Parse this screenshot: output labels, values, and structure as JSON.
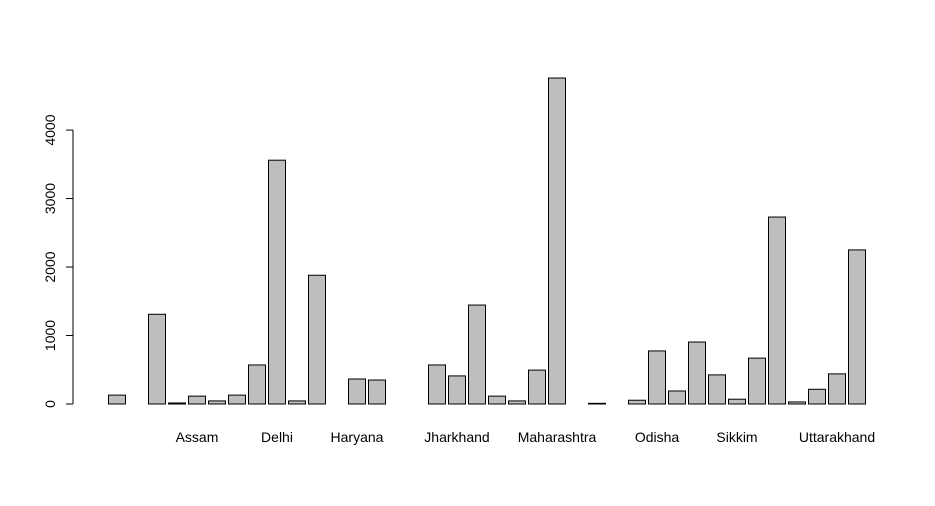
{
  "chart_data": {
    "type": "bar",
    "categories": [
      null,
      null,
      null,
      null,
      "Assam",
      null,
      null,
      null,
      "Delhi",
      null,
      null,
      null,
      "Haryana",
      null,
      null,
      null,
      null,
      "Jharkhand",
      null,
      null,
      null,
      null,
      "Maharashtra",
      null,
      null,
      null,
      null,
      "Odisha",
      null,
      null,
      null,
      "Sikkim",
      null,
      null,
      null,
      null,
      "Uttarakhand",
      null
    ],
    "values": [
      130,
      0,
      1310,
      15,
      115,
      45,
      130,
      570,
      3560,
      45,
      1880,
      0,
      365,
      350,
      0,
      0,
      570,
      410,
      1445,
      115,
      45,
      495,
      4760,
      0,
      10,
      0,
      55,
      775,
      190,
      905,
      425,
      70,
      670,
      2730,
      30,
      215,
      440,
      2250
    ],
    "color": "#bebebe",
    "ylim": [
      0,
      4950
    ],
    "yticks": [
      0,
      1000,
      2000,
      3000,
      4000
    ],
    "grid": false
  }
}
